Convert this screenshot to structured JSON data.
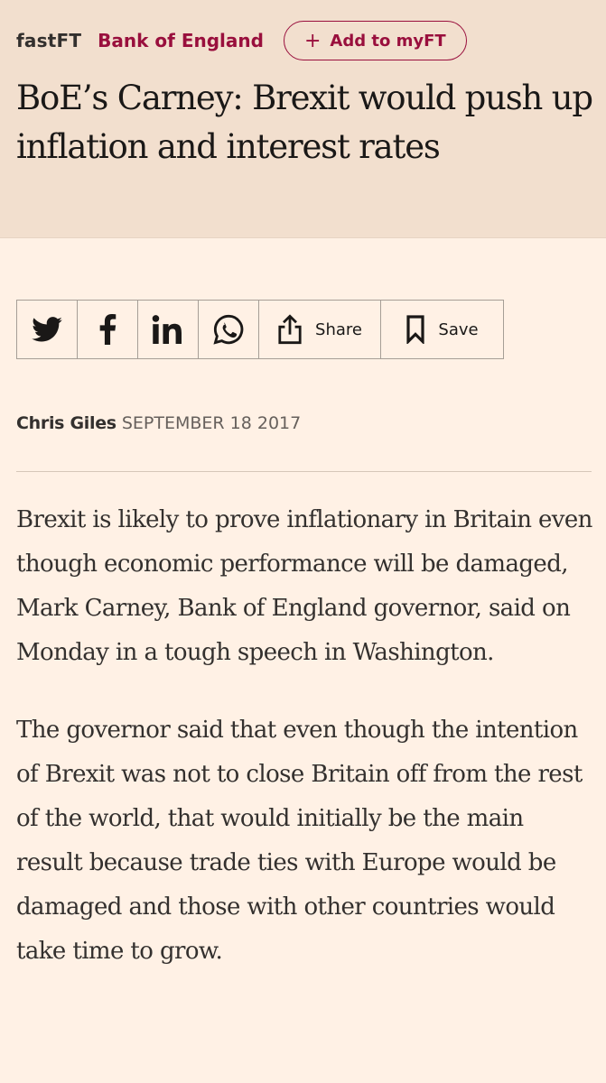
{
  "header": {
    "brand": "fastFT",
    "topic": "Bank of England",
    "myft_plus": "+",
    "myft_label": "Add to myFT",
    "headline": "BoE’s Carney: Brexit would push up inflation and interest rates"
  },
  "share_bar": {
    "twitter_icon": "twitter-icon",
    "facebook_icon": "facebook-icon",
    "linkedin_icon": "linkedin-icon",
    "whatsapp_icon": "whatsapp-icon",
    "share_label": "Share",
    "save_label": "Save"
  },
  "byline": {
    "author": "Chris Giles",
    "date": "SEPTEMBER 18 2017"
  },
  "article": {
    "paragraphs": [
      "Brexit is likely to prove inflationary in Britain even though economic performance will be damaged, Mark Carney, Bank of England governor, said on Monday in a tough speech in Washington.",
      "The governor said that even though the intention of Brexit was not to close Britain off from the rest of the world, that would initially be the main result because trade ties with Europe would be damaged and those with other countries would take time to grow."
    ]
  },
  "colors": {
    "page_background": "#fff1e5",
    "header_background": "#f2dfce",
    "accent": "#990f3d",
    "text": "#33302e"
  }
}
